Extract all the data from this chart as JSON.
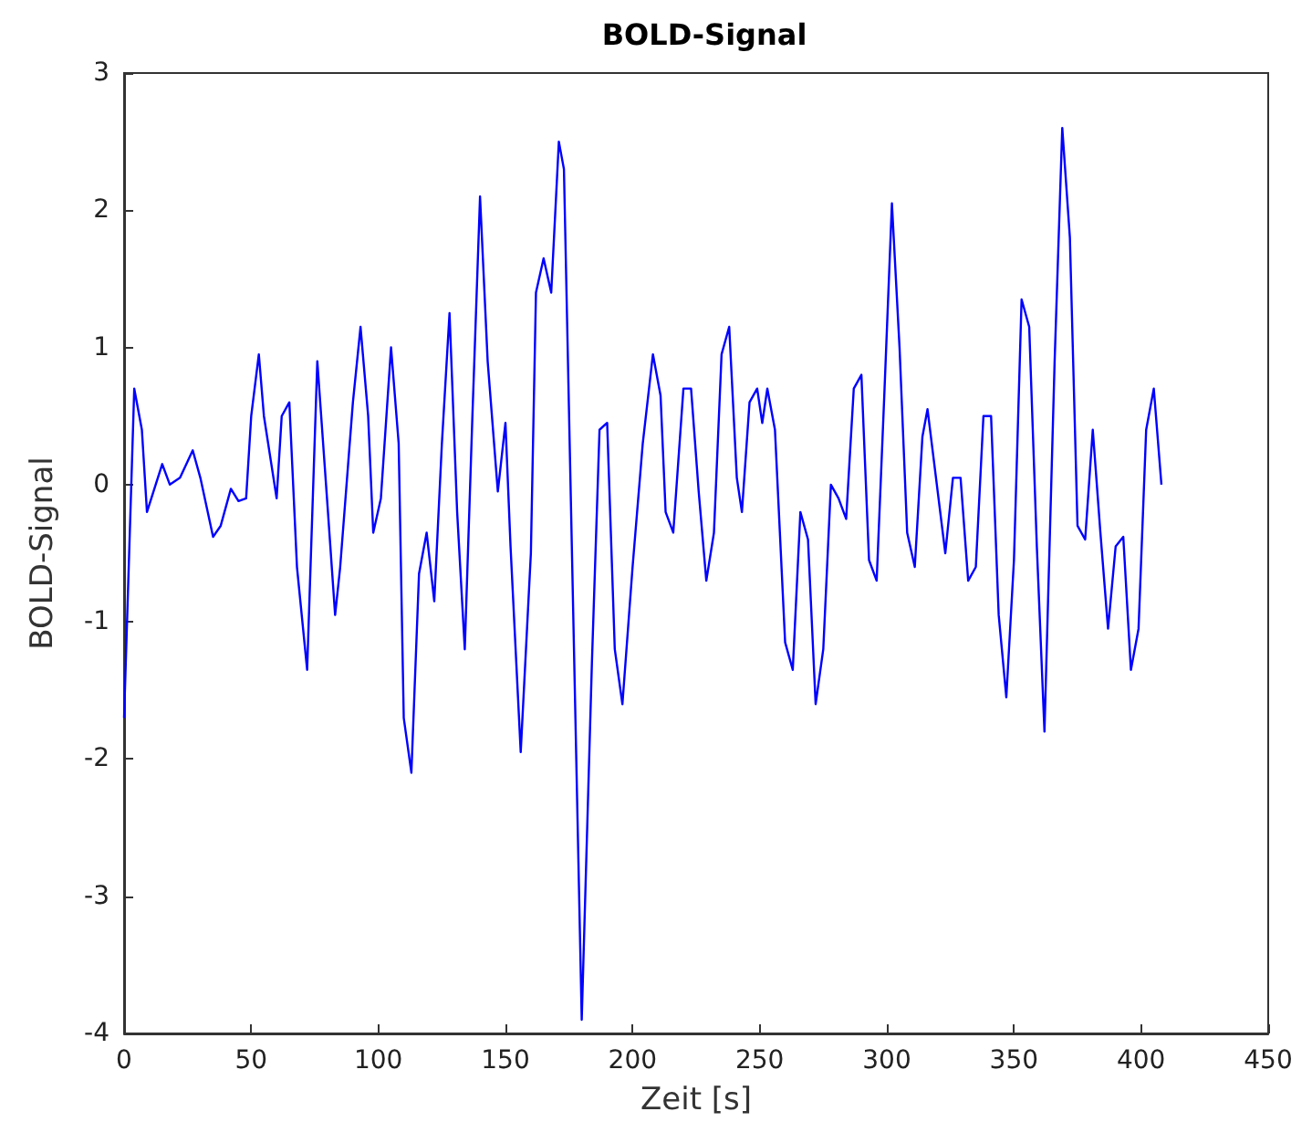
{
  "chart_data": {
    "type": "line",
    "title": "BOLD-Signal",
    "xlabel": "Zeit [s]",
    "ylabel": "BOLD-Signal",
    "xlim": [
      0,
      450
    ],
    "xticks": [
      0,
      50,
      100,
      150,
      200,
      250,
      300,
      350,
      400,
      450
    ],
    "ylim": [
      -4,
      3
    ],
    "yticks": [
      -4,
      -3,
      -2,
      -1,
      0,
      1,
      2,
      3
    ],
    "grid": false,
    "marker": "none",
    "line_style": "solid",
    "series": [
      {
        "color": "#0000ff",
        "x": [
          0,
          4,
          7,
          9,
          15,
          18,
          22,
          27,
          30,
          35,
          38,
          42,
          45,
          48,
          50,
          53,
          55,
          60,
          62,
          65,
          68,
          72,
          76,
          80,
          83,
          85,
          90,
          93,
          96,
          98,
          101,
          105,
          108,
          110,
          113,
          116,
          119,
          122,
          125,
          128,
          131,
          134,
          137,
          140,
          143,
          147,
          150,
          152,
          156,
          160,
          162,
          165,
          168,
          171,
          173,
          180,
          184,
          187,
          190,
          193,
          196,
          200,
          204,
          208,
          211,
          213,
          216,
          220,
          223,
          226,
          229,
          232,
          235,
          238,
          241,
          243,
          246,
          249,
          251,
          253,
          256,
          260,
          263,
          266,
          269,
          272,
          275,
          278,
          281,
          284,
          287,
          290,
          293,
          296,
          299,
          302,
          305,
          308,
          311,
          314,
          316,
          320,
          323,
          326,
          329,
          332,
          335,
          338,
          341,
          344,
          347,
          350,
          353,
          356,
          359,
          362,
          366,
          369,
          372,
          375,
          378,
          381,
          384,
          387,
          390,
          393,
          396,
          399,
          402,
          405,
          408
        ],
        "values": [
          -1.7,
          0.7,
          0.4,
          -0.2,
          0.15,
          0,
          0.05,
          0.25,
          0.05,
          -0.38,
          -0.3,
          -0.03,
          -0.12,
          -0.1,
          0.5,
          0.95,
          0.5,
          -0.1,
          0.5,
          0.6,
          -0.6,
          -1.35,
          0.9,
          -0.15,
          -0.95,
          -0.6,
          0.6,
          1.15,
          0.5,
          -0.35,
          -0.1,
          1.0,
          0.3,
          -1.7,
          -2.1,
          -0.65,
          -0.35,
          -0.85,
          0.3,
          1.25,
          -0.2,
          -1.2,
          0.5,
          2.1,
          0.9,
          -0.05,
          0.45,
          -0.45,
          -1.95,
          -0.5,
          1.4,
          1.65,
          1.4,
          2.5,
          2.3,
          -3.9,
          -1.3,
          0.4,
          0.45,
          -1.2,
          -1.6,
          -0.6,
          0.3,
          0.95,
          0.65,
          -0.2,
          -0.35,
          0.7,
          0.7,
          -0.05,
          -0.7,
          -0.35,
          0.95,
          1.15,
          0.05,
          -0.2,
          0.6,
          0.7,
          0.45,
          0.7,
          0.4,
          -1.15,
          -1.35,
          -0.2,
          -0.4,
          -1.6,
          -1.2,
          0,
          -0.1,
          -0.25,
          0.7,
          0.8,
          -0.55,
          -0.7,
          0.65,
          2.05,
          1.0,
          -0.35,
          -0.6,
          0.35,
          0.55,
          -0.05,
          -0.5,
          0.05,
          0.05,
          -0.7,
          -0.6,
          0.5,
          0.5,
          -0.95,
          -1.55,
          -0.55,
          1.35,
          1.15,
          -0.45,
          -1.8,
          0.9,
          2.6,
          1.8,
          -0.3,
          -0.4,
          0.4,
          -0.35,
          -1.05,
          -0.45,
          -0.38,
          -1.35,
          -1.05,
          0.4,
          0.7,
          0
        ]
      }
    ]
  }
}
